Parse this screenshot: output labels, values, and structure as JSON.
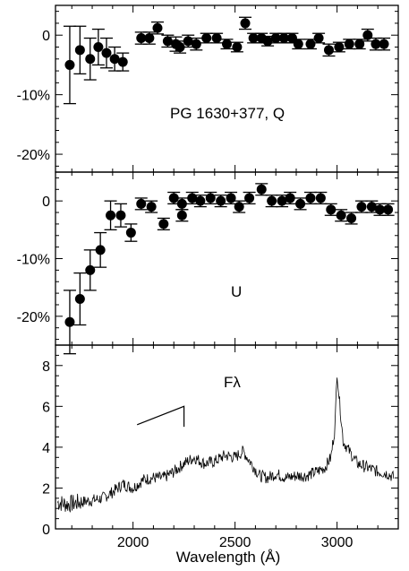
{
  "chart_data": [
    {
      "type": "scatter",
      "panel": "top",
      "annotation": "PG 1630+377, Q",
      "ylim": [
        -23,
        5
      ],
      "xlim": [
        1620,
        3300
      ],
      "yticks": [
        0,
        -10,
        -20
      ],
      "ytick_labels": [
        "0",
        "-10%",
        "-20%"
      ],
      "series": [
        {
          "x": [
            1690,
            1740,
            1790,
            1830,
            1870,
            1910,
            1950,
            2040,
            2080,
            2120,
            2170,
            2210,
            2230,
            2270,
            2310,
            2360,
            2410,
            2460,
            2510,
            2550,
            2590,
            2630,
            2660,
            2700,
            2740,
            2780,
            2810,
            2870,
            2910,
            2960,
            3010,
            3060,
            3110,
            3150,
            3190,
            3230
          ],
          "y": [
            -5,
            -2.5,
            -4,
            -2,
            -3,
            -4,
            -4.5,
            -0.5,
            -0.5,
            1.2,
            -1,
            -1.5,
            -2,
            -1,
            -1.5,
            -0.5,
            -0.5,
            -1.5,
            -2,
            2,
            -0.5,
            -0.5,
            -1,
            -0.5,
            -0.5,
            -0.5,
            -1.5,
            -1.5,
            -0.5,
            -2.5,
            -2,
            -1.5,
            -1.5,
            0,
            -1.5,
            -1.5
          ],
          "err": [
            6.5,
            4,
            3.5,
            3,
            2.5,
            2,
            1.5,
            1,
            1,
            1,
            1,
            1.2,
            1,
            1,
            1,
            0.8,
            0.8,
            0.8,
            0.8,
            1,
            0.8,
            0.8,
            0.8,
            0.8,
            0.8,
            0.8,
            0.8,
            0.8,
            0.8,
            1,
            0.8,
            0.8,
            0.8,
            1,
            1,
            1
          ]
        }
      ]
    },
    {
      "type": "scatter",
      "panel": "middle",
      "annotation": "U",
      "ylim": [
        -25,
        5
      ],
      "xlim": [
        1620,
        3300
      ],
      "yticks": [
        0,
        -10,
        -20
      ],
      "ytick_labels": [
        "0",
        "-10%",
        "-20%"
      ],
      "series": [
        {
          "x": [
            1690,
            1740,
            1790,
            1840,
            1890,
            1940,
            1990,
            2040,
            2090,
            2150,
            2200,
            2240,
            2240,
            2290,
            2330,
            2380,
            2430,
            2480,
            2520,
            2570,
            2630,
            2680,
            2730,
            2770,
            2820,
            2870,
            2920,
            2970,
            3020,
            3070,
            3120,
            3170,
            3210,
            3250
          ],
          "y": [
            -21,
            -17,
            -12,
            -8.5,
            -2.5,
            -2.5,
            -5.5,
            -0.5,
            -1,
            -4,
            0.5,
            -2.5,
            -0.5,
            0.5,
            0,
            0.5,
            0,
            0.5,
            -1,
            0.5,
            2,
            0,
            0,
            0.5,
            -0.5,
            0.5,
            0.5,
            -1.5,
            -2.5,
            -3,
            -1,
            -1,
            -1.5,
            -1.5
          ],
          "err": [
            5.5,
            4.5,
            3.5,
            3,
            2.5,
            2,
            1.5,
            1,
            1,
            1,
            1,
            1,
            1,
            1,
            1,
            1,
            1,
            1,
            1,
            1,
            1,
            1,
            1,
            1,
            1,
            1,
            1,
            1,
            1,
            1,
            1,
            1,
            1,
            1
          ]
        }
      ]
    },
    {
      "type": "line",
      "panel": "bottom",
      "annotation": "Fλ",
      "xlabel": "Wavelength (Å)",
      "ylim": [
        0,
        9
      ],
      "xlim": [
        1620,
        3300
      ],
      "xticks": [
        2000,
        2500,
        3000
      ],
      "xtick_labels": [
        "2000",
        "2500",
        "3000"
      ],
      "yticks": [
        0,
        2,
        4,
        6,
        8
      ],
      "ytick_labels": [
        "0",
        "2",
        "4",
        "6",
        "8"
      ],
      "series": [
        {
          "x": [
            1630,
            1680,
            1740,
            1800,
            1850,
            1900,
            1950,
            2000,
            2050,
            2100,
            2150,
            2200,
            2250,
            2300,
            2350,
            2400,
            2450,
            2500,
            2540,
            2580,
            2620,
            2660,
            2700,
            2750,
            2800,
            2850,
            2900,
            2940,
            2970,
            2990,
            3000,
            3010,
            3030,
            3060,
            3100,
            3150,
            3200,
            3250,
            3280
          ],
          "y": [
            1.3,
            1.2,
            1.3,
            1.4,
            1.5,
            1.8,
            2.2,
            2.0,
            2.4,
            2.5,
            2.5,
            2.8,
            3.2,
            3.5,
            3.2,
            3.3,
            3.6,
            3.5,
            3.8,
            3.2,
            2.6,
            2.5,
            2.7,
            2.5,
            2.6,
            2.6,
            2.8,
            3.0,
            3.5,
            5.0,
            7.7,
            6.5,
            4.3,
            3.8,
            3.2,
            3.0,
            2.8,
            2.7,
            2.5
          ],
          "noise": true
        }
      ],
      "reference_line": {
        "x": [
          2020,
          2250,
          2250
        ],
        "y": [
          5.1,
          6.0,
          5.0
        ]
      }
    }
  ]
}
